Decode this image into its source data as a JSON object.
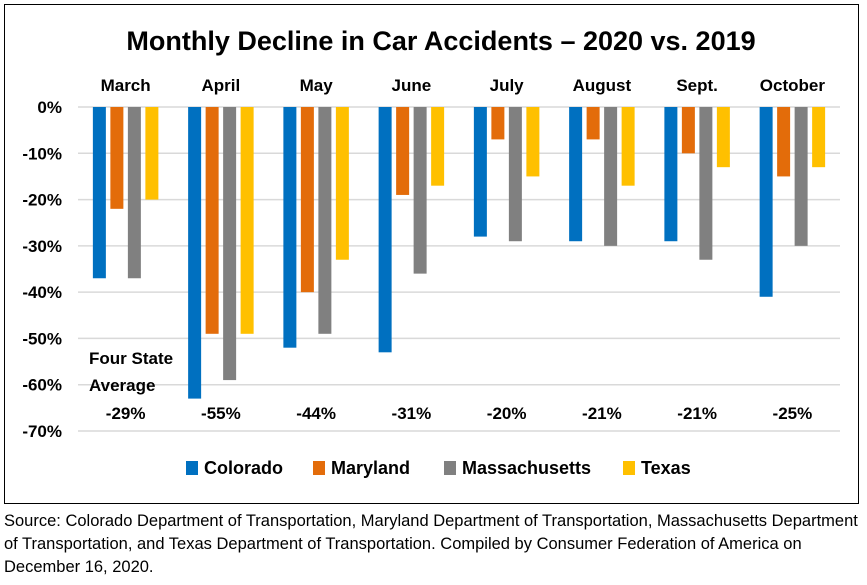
{
  "chart_data": {
    "type": "bar",
    "title": "Monthly Decline in Car Accidents – 2020 vs. 2019",
    "categories": [
      "March",
      "April",
      "May",
      "June",
      "July",
      "August",
      "Sept.",
      "October"
    ],
    "series": [
      {
        "name": "Colorado",
        "color": "#0070C0",
        "values": [
          -37,
          -63,
          -52,
          -53,
          -28,
          -29,
          -29,
          -41
        ]
      },
      {
        "name": "Maryland",
        "color": "#E36C0A",
        "values": [
          -22,
          -49,
          -40,
          -19,
          -7,
          -7,
          -10,
          -15
        ]
      },
      {
        "name": "Massachusetts",
        "color": "#808080",
        "values": [
          -37,
          -59,
          -49,
          -36,
          -29,
          -30,
          -33,
          -30
        ]
      },
      {
        "name": "Texas",
        "color": "#FFC000",
        "values": [
          -20,
          -49,
          -33,
          -17,
          -15,
          -17,
          -13,
          -13
        ]
      }
    ],
    "y_ticks": [
      "0%",
      "-10%",
      "-20%",
      "-30%",
      "-40%",
      "-50%",
      "-60%",
      "-70%"
    ],
    "ylim": [
      -70,
      0
    ],
    "grid": true,
    "legend_position": "bottom",
    "average_label": [
      "Four State",
      "Average"
    ],
    "averages": [
      "-29%",
      "-55%",
      "-44%",
      "-31%",
      "-20%",
      "-21%",
      "-21%",
      "-25%"
    ]
  },
  "source_text": "Source: Colorado Department of Transportation, Maryland Department of Transportation, Massachusetts Department of Transportation, and Texas Department of Transportation. Compiled by Consumer Federation of America on December 16, 2020."
}
